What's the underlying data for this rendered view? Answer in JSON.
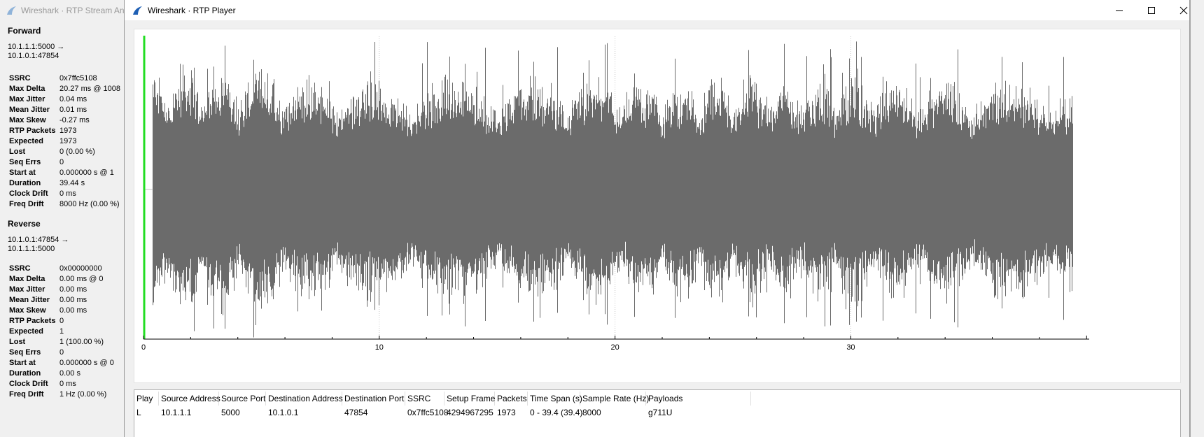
{
  "background_window": {
    "title": "Wireshark · RTP Stream Analysis",
    "forward": {
      "heading": "Forward",
      "addr_line1": "10.1.1.1:5000 →",
      "addr_line2": "10.1.0.1:47854",
      "stats": [
        {
          "key": "SSRC",
          "value": "0x7ffc5108"
        },
        {
          "key": "Max Delta",
          "value": "20.27 ms @ 1008"
        },
        {
          "key": "Max Jitter",
          "value": "0.04 ms"
        },
        {
          "key": "Mean Jitter",
          "value": "0.01 ms"
        },
        {
          "key": "Max Skew",
          "value": "-0.27 ms"
        },
        {
          "key": "RTP Packets",
          "value": "1973"
        },
        {
          "key": "Expected",
          "value": "1973"
        },
        {
          "key": "Lost",
          "value": "0 (0.00 %)"
        },
        {
          "key": "Seq Errs",
          "value": "0"
        },
        {
          "key": "Start at",
          "value": "0.000000 s @ 1"
        },
        {
          "key": "Duration",
          "value": "39.44 s"
        },
        {
          "key": "Clock Drift",
          "value": "0 ms"
        },
        {
          "key": "Freq Drift",
          "value": "8000 Hz (0.00 %)"
        }
      ]
    },
    "reverse": {
      "heading": "Reverse",
      "addr_line1": "10.1.0.1:47854 →",
      "addr_line2": "10.1.1.1:5000",
      "stats": [
        {
          "key": "SSRC",
          "value": "0x00000000"
        },
        {
          "key": "Max Delta",
          "value": "0.00 ms @ 0"
        },
        {
          "key": "Max Jitter",
          "value": "0.00 ms"
        },
        {
          "key": "Mean Jitter",
          "value": "0.00 ms"
        },
        {
          "key": "Max Skew",
          "value": "0.00 ms"
        },
        {
          "key": "RTP Packets",
          "value": "0"
        },
        {
          "key": "Expected",
          "value": "1"
        },
        {
          "key": "Lost",
          "value": "1 (100.00 %)"
        },
        {
          "key": "Seq Errs",
          "value": "0"
        },
        {
          "key": "Start at",
          "value": "0.000000 s @ 0"
        },
        {
          "key": "Duration",
          "value": "0.00 s"
        },
        {
          "key": "Clock Drift",
          "value": "0 ms"
        },
        {
          "key": "Freq Drift",
          "value": "1 Hz (0.00 %)"
        }
      ]
    }
  },
  "player_window": {
    "title": "Wireshark · RTP Player",
    "controls": {
      "minimize": "minimize-icon",
      "maximize": "maximize-icon",
      "close": "close-icon"
    }
  },
  "chart_data": {
    "type": "line",
    "title": "",
    "xlabel": "",
    "ylabel": "",
    "x_ticks": [
      "0",
      "10",
      "20",
      "30"
    ],
    "xlim": [
      0,
      40.2
    ],
    "playhead_x": 0,
    "audio_start_x": 0.4,
    "audio_end_x": 39.44,
    "grid": "vertical dotted lines at major ticks",
    "colors": {
      "waveform": "#6b6b6b",
      "playhead": "#22dd22",
      "grid": "#c8c8c8"
    }
  },
  "streams_table": {
    "headers": [
      "Play",
      "Source Address",
      "Source Port",
      "Destination Address",
      "Destination Port",
      "SSRC",
      "Setup Frame",
      "Packets",
      "Time Span (s)",
      "Sample Rate (Hz)",
      "Payloads"
    ],
    "rows": [
      [
        "L",
        "10.1.1.1",
        "5000",
        "10.1.0.1",
        "47854",
        "0x7ffc5108",
        "4294967295",
        "1973",
        "0 - 39.4 (39.4)",
        "8000",
        "g711U"
      ]
    ]
  }
}
